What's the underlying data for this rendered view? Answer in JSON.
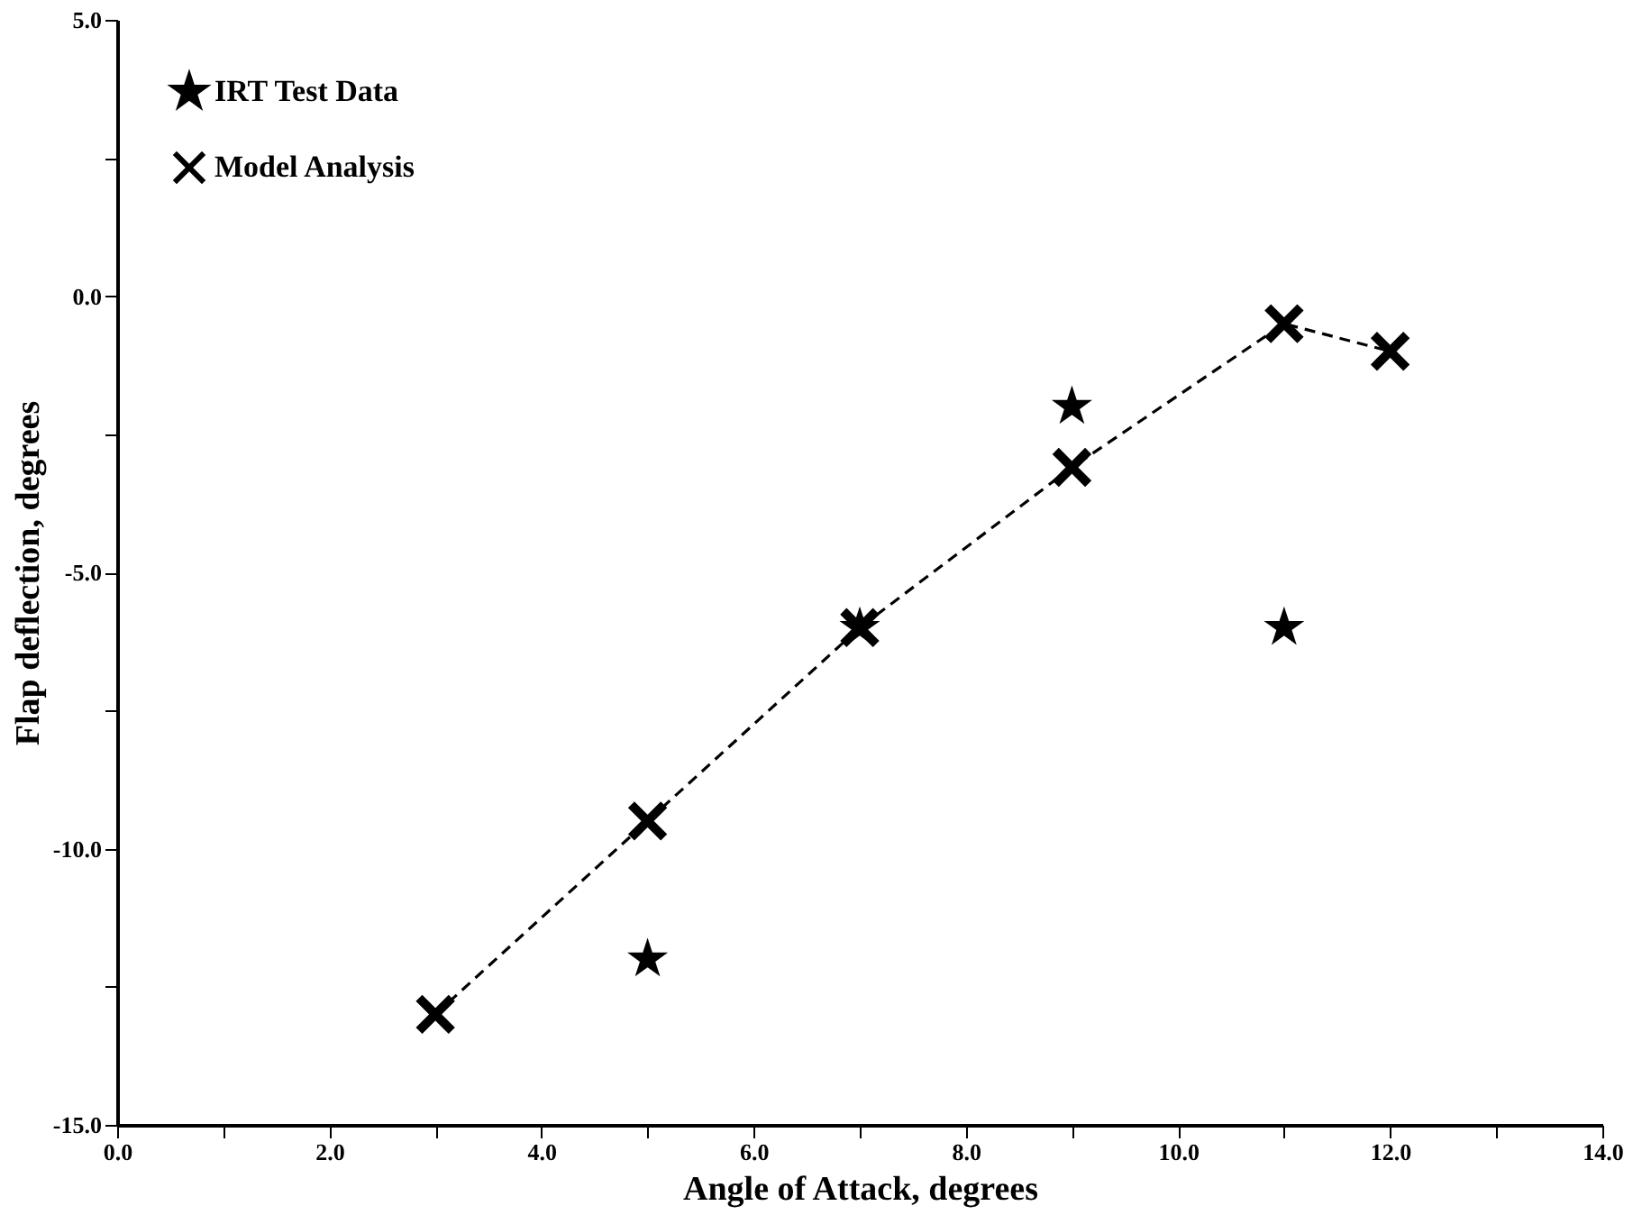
{
  "chart_data": {
    "type": "line",
    "xlabel": "Angle of Attack, degrees",
    "ylabel": "Flap deflection, degrees",
    "xlim": [
      0,
      14
    ],
    "ylim": [
      -15,
      5
    ],
    "xticks": [
      {
        "value": 0,
        "label": "0.0"
      },
      {
        "value": 1,
        "label": null
      },
      {
        "value": 2,
        "label": "2.0"
      },
      {
        "value": 3,
        "label": null
      },
      {
        "value": 4,
        "label": "4.0"
      },
      {
        "value": 5,
        "label": null
      },
      {
        "value": 6,
        "label": "6.0"
      },
      {
        "value": 7,
        "label": null
      },
      {
        "value": 8,
        "label": "8.0"
      },
      {
        "value": 9,
        "label": null
      },
      {
        "value": 10,
        "label": "10.0"
      },
      {
        "value": 11,
        "label": null
      },
      {
        "value": 12,
        "label": "12.0"
      },
      {
        "value": 13,
        "label": null
      },
      {
        "value": 14,
        "label": "14.0"
      }
    ],
    "yticks": [
      {
        "value": -15,
        "label": "-15.0"
      },
      {
        "value": -12.5,
        "label": null
      },
      {
        "value": -10,
        "label": "-10.0"
      },
      {
        "value": -7.5,
        "label": null
      },
      {
        "value": -5,
        "label": "-5.0"
      },
      {
        "value": -2.5,
        "label": null
      },
      {
        "value": 0,
        "label": "0.0"
      },
      {
        "value": 2.5,
        "label": null
      },
      {
        "value": 5,
        "label": "5.0"
      }
    ],
    "grid": false,
    "legend": "top left",
    "series": [
      {
        "name": "IRT Test Data",
        "type": "scatter",
        "marker": "star",
        "color": "#000000",
        "x": [
          5,
          7,
          9,
          11
        ],
        "values": [
          -12,
          -6,
          -2,
          -6
        ]
      },
      {
        "name": "Model Analysis",
        "marker": "cross",
        "line_style": "dashed",
        "color": "#000000",
        "x": [
          3,
          5,
          7,
          9,
          11,
          12
        ],
        "values": [
          -13,
          -9.5,
          -6,
          -3.1,
          -0.5,
          -1
        ]
      }
    ]
  }
}
